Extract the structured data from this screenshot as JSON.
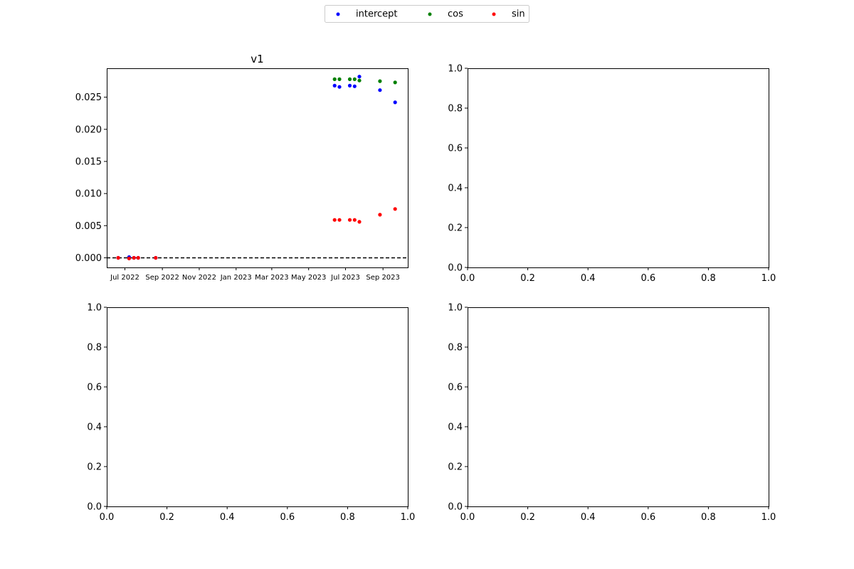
{
  "legend": {
    "placement": "top-center",
    "entries": [
      {
        "label": "intercept",
        "color": "#0000ff"
      },
      {
        "label": "cos",
        "color": "#008000"
      },
      {
        "label": "sin",
        "color": "#ff0000"
      }
    ]
  },
  "chart_data": [
    {
      "type": "scatter",
      "title": "v1",
      "xlabel": "",
      "ylabel": "",
      "x_type": "date",
      "xlim": [
        "2022-06-01",
        "2023-10-12"
      ],
      "ylim": [
        -0.0015,
        0.0295
      ],
      "xticks": [
        {
          "date": "2022-07-01",
          "label": "Jul 2022"
        },
        {
          "date": "2022-09-01",
          "label": "Sep 2022"
        },
        {
          "date": "2022-11-01",
          "label": "Nov 2022"
        },
        {
          "date": "2023-01-01",
          "label": "Jan 2023"
        },
        {
          "date": "2023-03-01",
          "label": "Mar 2023"
        },
        {
          "date": "2023-05-01",
          "label": "May 2023"
        },
        {
          "date": "2023-07-01",
          "label": "Jul 2023"
        },
        {
          "date": "2023-09-01",
          "label": "Sep 2023"
        }
      ],
      "yticks": [
        "0.000",
        "0.005",
        "0.010",
        "0.015",
        "0.020",
        "0.025"
      ],
      "ytick_values": [
        0,
        0.005,
        0.01,
        0.015,
        0.02,
        0.025
      ],
      "reference_line": {
        "y": 0,
        "style": "dashed",
        "color": "#000000"
      },
      "grid": false,
      "series": [
        {
          "name": "intercept",
          "color": "#0000ff",
          "points": [
            {
              "x": "2022-06-20",
              "y": 0.0
            },
            {
              "x": "2022-07-08",
              "y": 0.0001
            },
            {
              "x": "2022-07-16",
              "y": 0.0
            },
            {
              "x": "2022-07-23",
              "y": 0.0
            },
            {
              "x": "2022-08-21",
              "y": 0.0
            },
            {
              "x": "2023-06-13",
              "y": 0.0268
            },
            {
              "x": "2023-06-21",
              "y": 0.0266
            },
            {
              "x": "2023-07-08",
              "y": 0.0268
            },
            {
              "x": "2023-07-16",
              "y": 0.0267
            },
            {
              "x": "2023-07-24",
              "y": 0.0282
            },
            {
              "x": "2023-08-27",
              "y": 0.0261
            },
            {
              "x": "2023-09-21",
              "y": 0.0242
            }
          ]
        },
        {
          "name": "cos",
          "color": "#008000",
          "points": [
            {
              "x": "2023-06-13",
              "y": 0.0278
            },
            {
              "x": "2023-06-21",
              "y": 0.0278
            },
            {
              "x": "2023-07-08",
              "y": 0.0278
            },
            {
              "x": "2023-07-16",
              "y": 0.0278
            },
            {
              "x": "2023-07-24",
              "y": 0.0276
            },
            {
              "x": "2023-08-27",
              "y": 0.0275
            },
            {
              "x": "2023-09-21",
              "y": 0.0273
            }
          ]
        },
        {
          "name": "sin",
          "color": "#ff0000",
          "points": [
            {
              "x": "2022-06-20",
              "y": 0.0
            },
            {
              "x": "2022-07-08",
              "y": -0.0001
            },
            {
              "x": "2022-07-16",
              "y": 0.0
            },
            {
              "x": "2022-07-23",
              "y": 0.0
            },
            {
              "x": "2022-08-21",
              "y": 0.0
            },
            {
              "x": "2023-06-13",
              "y": 0.0059
            },
            {
              "x": "2023-06-21",
              "y": 0.0059
            },
            {
              "x": "2023-07-08",
              "y": 0.0059
            },
            {
              "x": "2023-07-16",
              "y": 0.0059
            },
            {
              "x": "2023-07-24",
              "y": 0.0056
            },
            {
              "x": "2023-08-27",
              "y": 0.0067
            },
            {
              "x": "2023-09-21",
              "y": 0.0076
            }
          ]
        }
      ]
    },
    {
      "type": "scatter",
      "title": "",
      "xlim": [
        0,
        1
      ],
      "ylim": [
        0,
        1
      ],
      "xticks": [
        "0.0",
        "0.2",
        "0.4",
        "0.6",
        "0.8",
        "1.0"
      ],
      "yticks": [
        "0.0",
        "0.2",
        "0.4",
        "0.6",
        "0.8",
        "1.0"
      ],
      "series": []
    },
    {
      "type": "scatter",
      "title": "",
      "xlim": [
        0,
        1
      ],
      "ylim": [
        0,
        1
      ],
      "xticks": [
        "0.0",
        "0.2",
        "0.4",
        "0.6",
        "0.8",
        "1.0"
      ],
      "yticks": [
        "0.0",
        "0.2",
        "0.4",
        "0.6",
        "0.8",
        "1.0"
      ],
      "series": []
    },
    {
      "type": "scatter",
      "title": "",
      "xlim": [
        0,
        1
      ],
      "ylim": [
        0,
        1
      ],
      "xticks": [
        "0.0",
        "0.2",
        "0.4",
        "0.6",
        "0.8",
        "1.0"
      ],
      "yticks": [
        "0.0",
        "0.2",
        "0.4",
        "0.6",
        "0.8",
        "1.0"
      ],
      "series": []
    }
  ]
}
